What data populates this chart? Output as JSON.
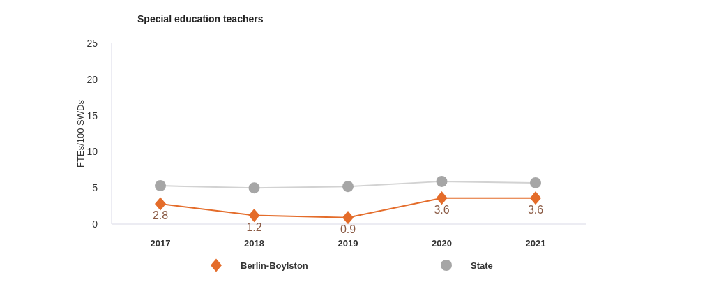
{
  "chart_data": {
    "type": "line",
    "title": "Special education teachers",
    "ylabel": "FTEs/100 SWDs",
    "categories": [
      "2017",
      "2018",
      "2019",
      "2020",
      "2021"
    ],
    "ylim": [
      0,
      25
    ],
    "yticks": [
      0,
      5,
      10,
      15,
      20,
      25
    ],
    "grid": false,
    "legend": "bottom",
    "series": [
      {
        "name": "Berlin-Boylston",
        "color": "#e46c2a",
        "marker": "diamond",
        "values": [
          2.8,
          1.2,
          0.9,
          3.6,
          3.6
        ],
        "value_labels": [
          "2.8",
          "1.2",
          "0.9",
          "3.6",
          "3.6"
        ]
      },
      {
        "name": "State",
        "color": "#a6a6a6",
        "marker": "circle",
        "values": [
          5.3,
          5.0,
          5.2,
          5.9,
          5.7
        ]
      }
    ]
  }
}
